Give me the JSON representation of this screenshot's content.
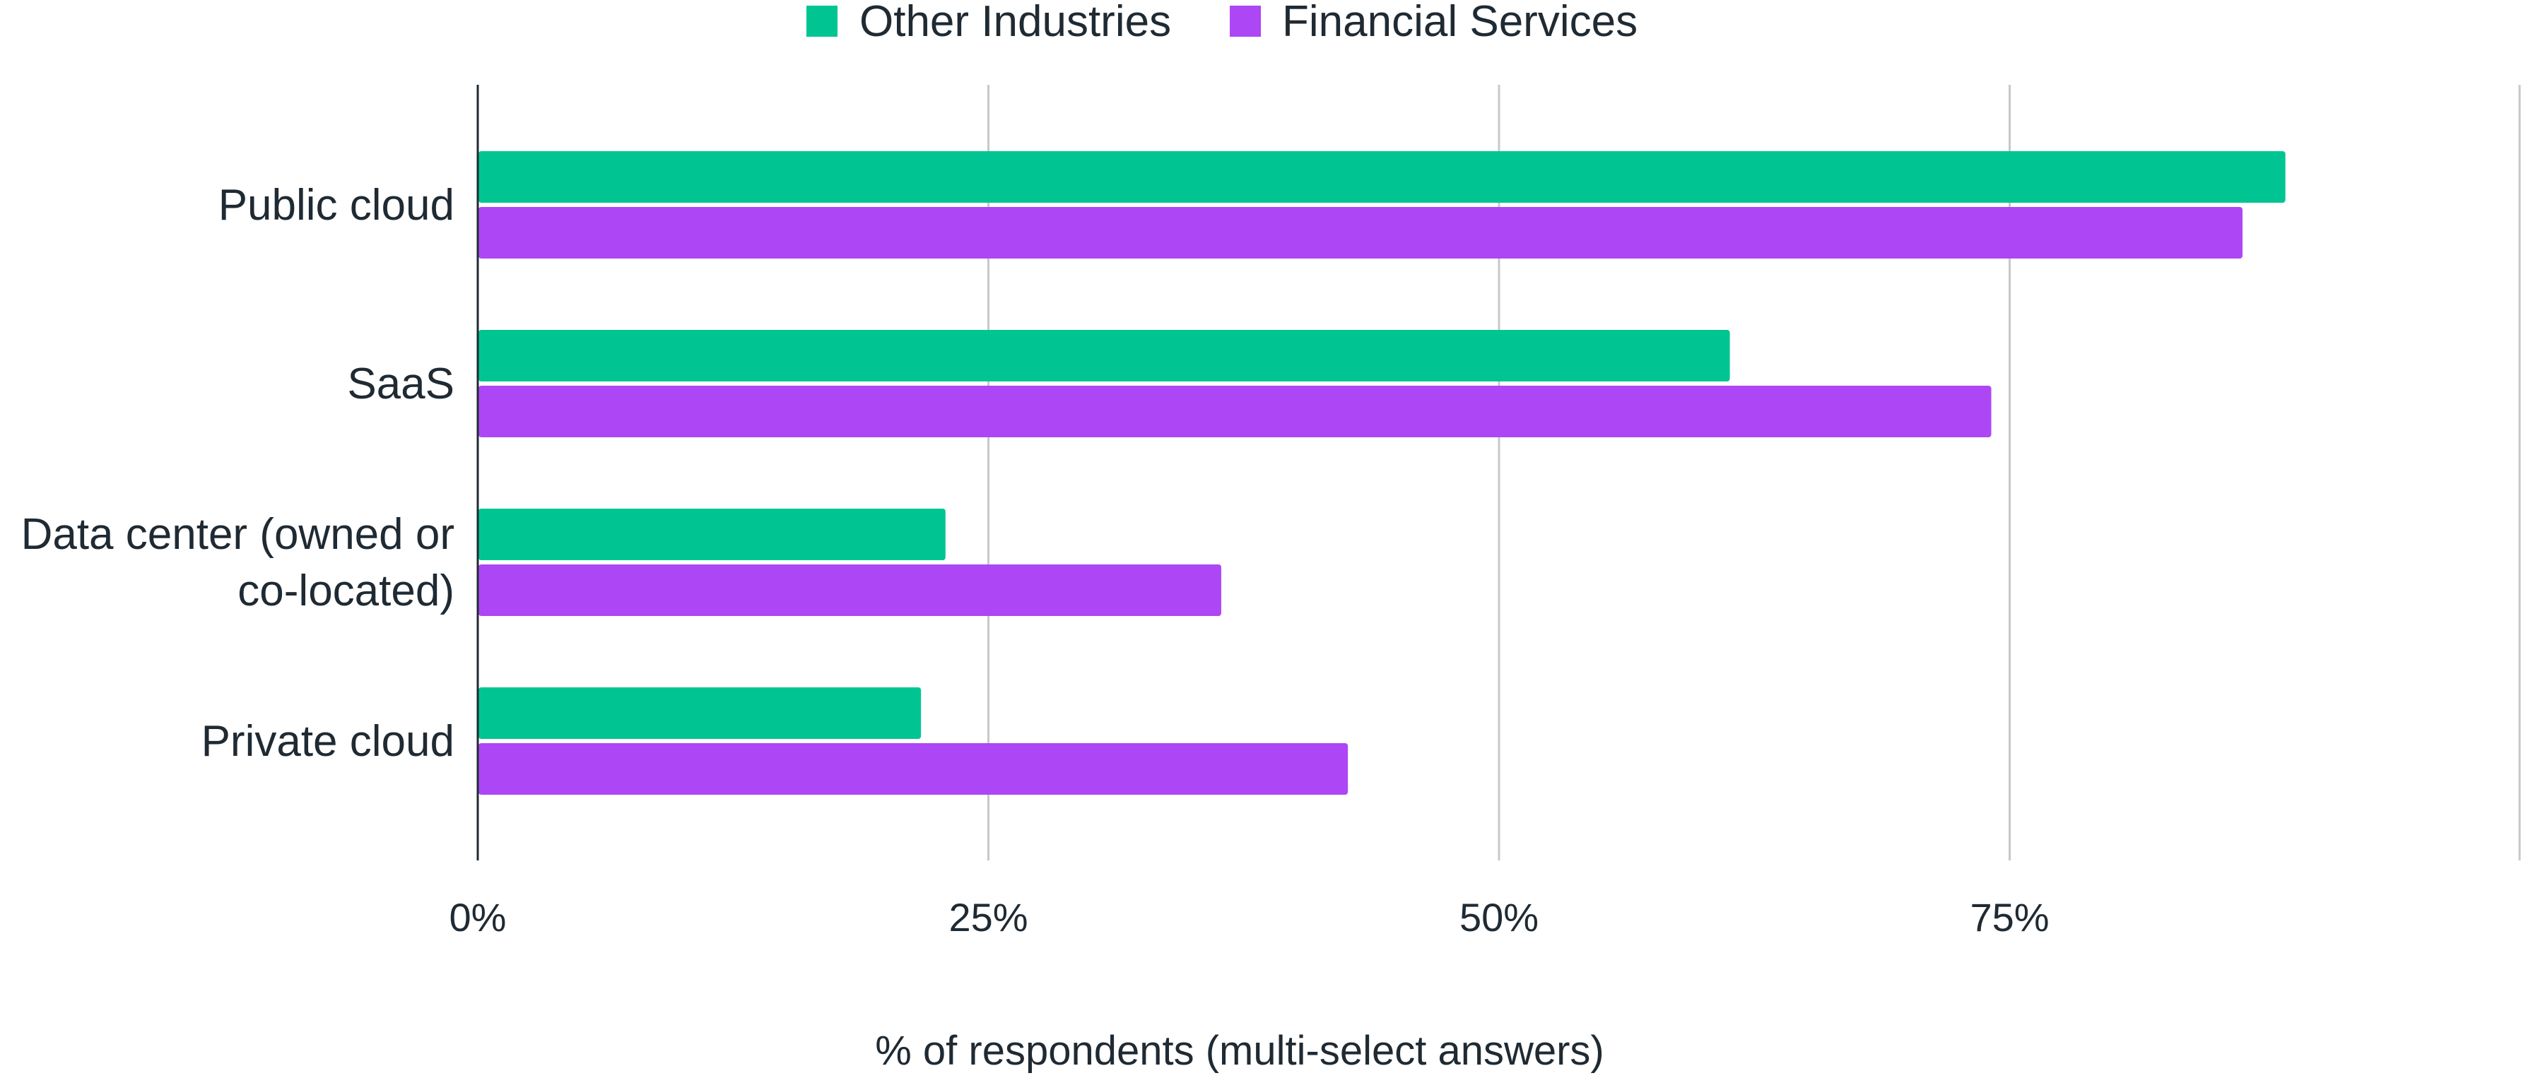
{
  "chart_data": {
    "type": "bar",
    "orientation": "horizontal",
    "title": "",
    "xlabel": "% of respondents (multi-select answers)",
    "ylabel": "",
    "categories": [
      [
        "Public cloud"
      ],
      [
        "SaaS"
      ],
      [
        "Data center (owned or",
        "co-located)"
      ],
      [
        "Private cloud"
      ]
    ],
    "series": [
      {
        "name": "Other Industries",
        "color": "#00c592",
        "values": [
          88.5,
          61.3,
          22.9,
          21.7
        ]
      },
      {
        "name": "Financial Services",
        "color": "#ad46f5",
        "values": [
          86.4,
          74.1,
          36.4,
          42.6
        ]
      }
    ],
    "xlim": [
      0,
      100
    ],
    "xticks": [
      0,
      25,
      50,
      75
    ],
    "xtick_labels": [
      "0%",
      "25%",
      "50%",
      "75%"
    ],
    "grid": true,
    "legend": "top-center"
  }
}
